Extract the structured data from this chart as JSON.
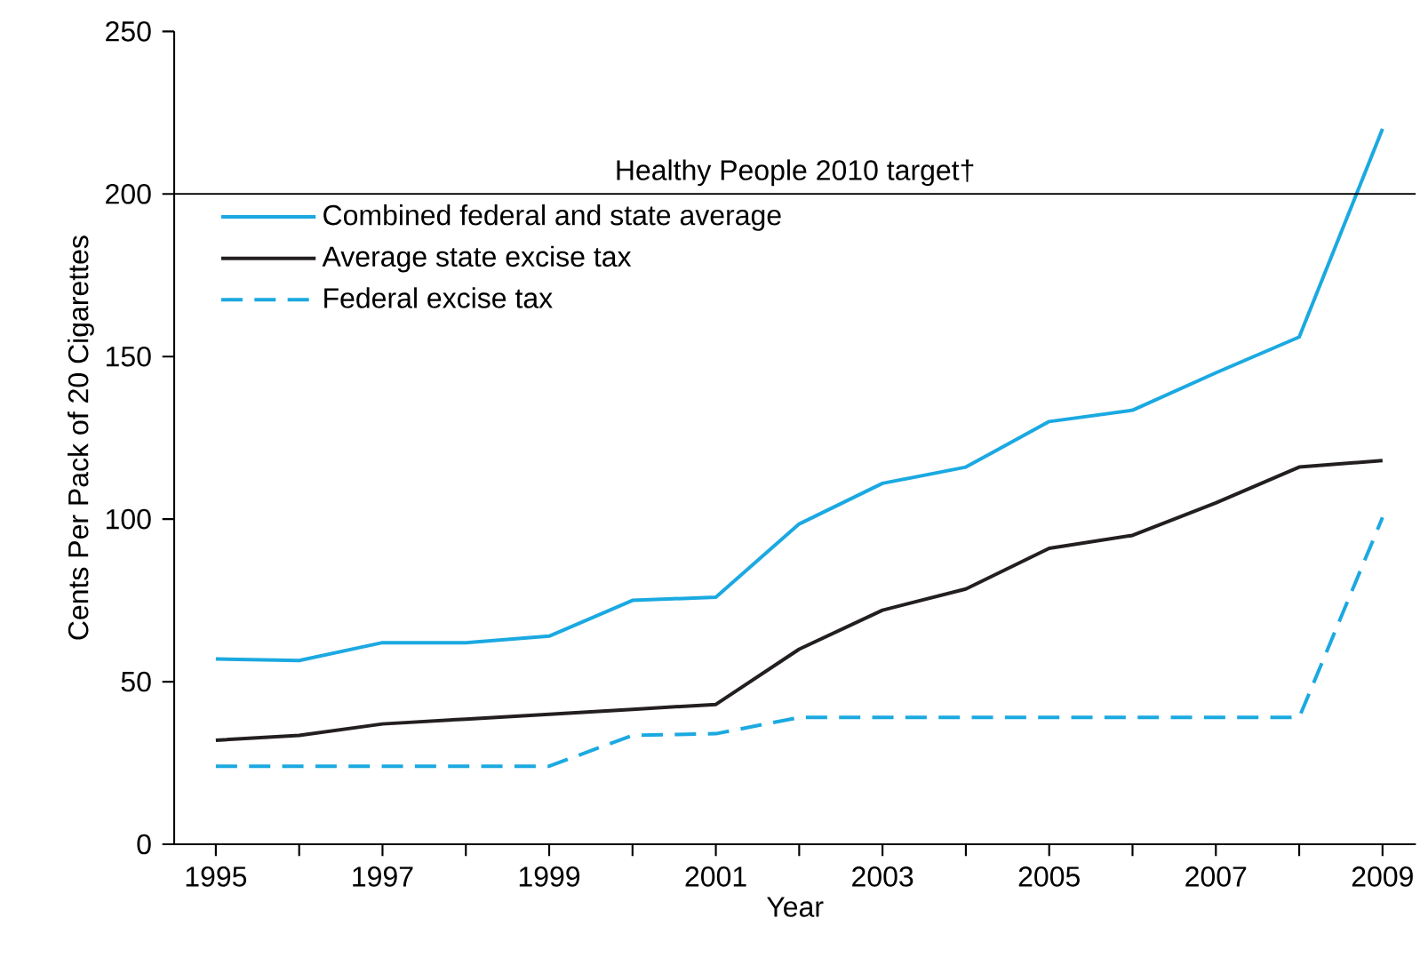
{
  "chart_data": {
    "type": "line",
    "xlabel": "Year",
    "ylabel": "Cents Per Pack of 20 Cigarettes",
    "x": [
      1995,
      1996,
      1997,
      1998,
      1999,
      2000,
      2001,
      2002,
      2003,
      2004,
      2005,
      2006,
      2007,
      2008,
      2009
    ],
    "series": [
      {
        "name": "Combined federal and state average",
        "color": "#1ba9e1",
        "line_style": "solid",
        "values": [
          57,
          56.5,
          62,
          62,
          64,
          75,
          76,
          98.5,
          111,
          116,
          130,
          133.5,
          145,
          156,
          220
        ]
      },
      {
        "name": "Average state excise tax",
        "color": "#231f20",
        "line_style": "solid",
        "values": [
          32,
          33.5,
          37,
          38.5,
          40,
          41.5,
          43,
          60,
          72,
          78.5,
          91,
          95,
          105,
          116,
          118
        ]
      },
      {
        "name": "Federal excise tax",
        "color": "#1ba9e1",
        "line_style": "dashed",
        "values": [
          24,
          24,
          24,
          24,
          24,
          33.5,
          34,
          39,
          39,
          39,
          39,
          39,
          39,
          39,
          100.5
        ]
      }
    ],
    "xlim": [
      1994.5,
      2009.4
    ],
    "ylim": [
      0,
      250
    ],
    "xticks": [
      1995,
      {
        "value": 1996,
        "label": null
      },
      1997,
      {
        "value": 1998,
        "label": null
      },
      1999,
      {
        "value": 2000,
        "label": null
      },
      2001,
      {
        "value": 2002,
        "label": null
      },
      2003,
      {
        "value": 2004,
        "label": null
      },
      2005,
      {
        "value": 2006,
        "label": null
      },
      2007,
      {
        "value": 2008,
        "label": null
      },
      2009
    ],
    "yticks": [
      0,
      50,
      100,
      150,
      200,
      250
    ],
    "ref_lines": [
      {
        "axis": "y",
        "value": 200,
        "label": "Healthy People 2010 target†",
        "color": "#000000"
      }
    ],
    "legend": "top left",
    "grid": false,
    "marker": "none"
  }
}
